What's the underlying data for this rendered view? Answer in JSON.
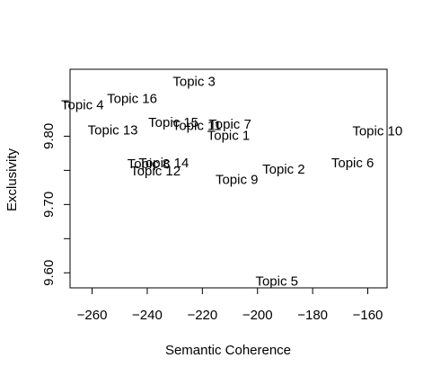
{
  "chart_data": {
    "type": "scatter",
    "title": "",
    "xlabel": "Semantic Coherence",
    "ylabel": "Exclusivity",
    "xlim": [
      -268,
      -153
    ],
    "ylim": [
      9.578,
      9.898
    ],
    "x_ticks": [
      -260,
      -240,
      -220,
      -200,
      -180,
      -160
    ],
    "x_tick_labels": [
      "−260",
      "−240",
      "−220",
      "−200",
      "−180",
      "−160"
    ],
    "y_ticks": [
      9.6,
      9.65,
      9.7,
      9.75,
      9.8,
      9.85
    ],
    "y_tick_labels": [
      "9.60",
      "",
      "9.70",
      "",
      "9.80",
      ""
    ],
    "grid": false,
    "points": [
      {
        "label": "Topic 1",
        "x": -210.5,
        "y": 9.801
      },
      {
        "label": "Topic 2",
        "x": -190.5,
        "y": 9.752
      },
      {
        "label": "Topic 3",
        "x": -223.0,
        "y": 9.88
      },
      {
        "label": "Topic 4",
        "x": -263.5,
        "y": 9.846
      },
      {
        "label": "Topic 5",
        "x": -193.0,
        "y": 9.588
      },
      {
        "label": "Topic 6",
        "x": -165.5,
        "y": 9.761
      },
      {
        "label": "Topic 7",
        "x": -210.0,
        "y": 9.818
      },
      {
        "label": "Topic 8",
        "x": -239.5,
        "y": 9.76
      },
      {
        "label": "Topic 9",
        "x": -207.5,
        "y": 9.737
      },
      {
        "label": "Topic 10",
        "x": -156.5,
        "y": 9.808
      },
      {
        "label": "Topic 11",
        "x": -222.0,
        "y": 9.816
      },
      {
        "label": "Topic 12",
        "x": -237.0,
        "y": 9.749
      },
      {
        "label": "Topic 13",
        "x": -252.5,
        "y": 9.809
      },
      {
        "label": "Topic 14",
        "x": -234.0,
        "y": 9.761
      },
      {
        "label": "Topic 15",
        "x": -230.5,
        "y": 9.82
      },
      {
        "label": "Topic 16",
        "x": -245.5,
        "y": 9.855
      }
    ]
  }
}
